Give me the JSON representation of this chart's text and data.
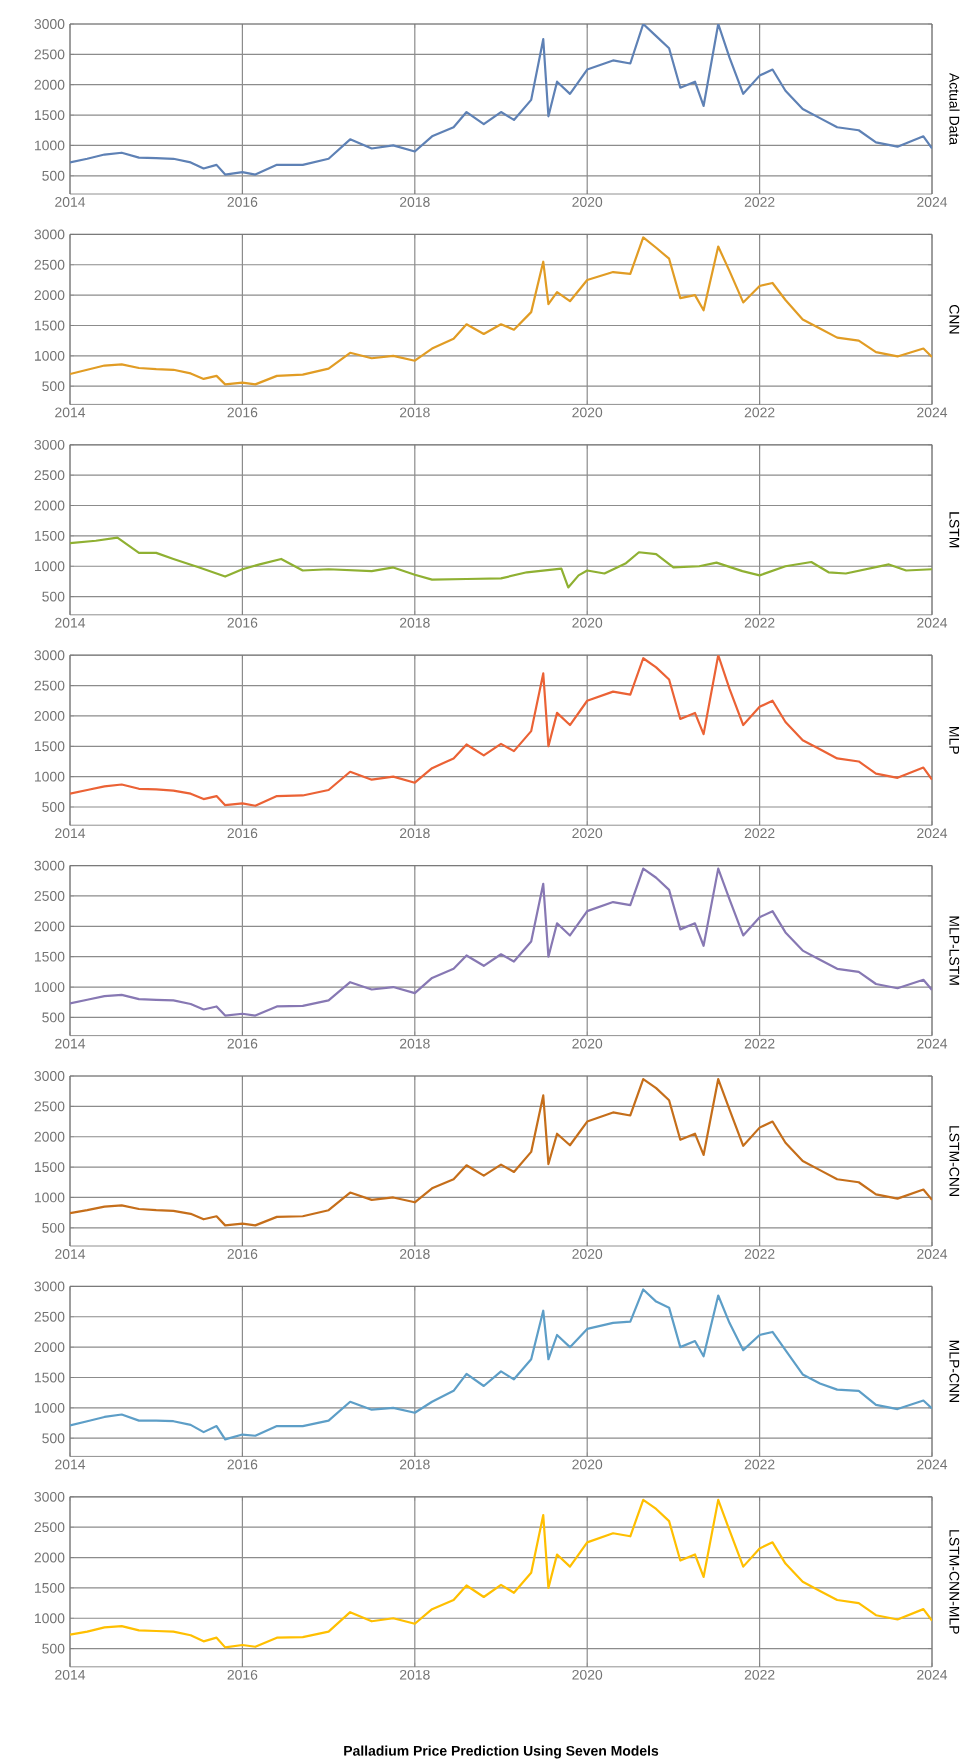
{
  "chart_data": [
    {
      "type": "line",
      "ylabel": "Actual Data",
      "xlim": [
        2014,
        2024
      ],
      "ylim": [
        200,
        3000
      ],
      "xticks": [
        2014,
        2016,
        2018,
        2020,
        2022,
        2024
      ],
      "yticks": [
        500,
        1000,
        1500,
        2000,
        2500,
        3000
      ],
      "grid": true,
      "x": [
        2014.0,
        2014.2,
        2014.4,
        2014.6,
        2014.8,
        2015.0,
        2015.2,
        2015.4,
        2015.55,
        2015.7,
        2015.8,
        2016.0,
        2016.15,
        2016.4,
        2016.7,
        2017.0,
        2017.25,
        2017.5,
        2017.75,
        2018.0,
        2018.2,
        2018.45,
        2018.6,
        2018.8,
        2019.0,
        2019.15,
        2019.35,
        2019.49,
        2019.55,
        2019.65,
        2019.8,
        2020.0,
        2020.3,
        2020.5,
        2020.65,
        2020.8,
        2020.95,
        2021.08,
        2021.25,
        2021.35,
        2021.52,
        2021.65,
        2021.81,
        2022.0,
        2022.15,
        2022.3,
        2022.5,
        2022.7,
        2022.9,
        2023.15,
        2023.35,
        2023.6,
        2023.9,
        2024.0
      ],
      "series": [
        {
          "color": "#5e81b5",
          "values": [
            720,
            780,
            850,
            880,
            800,
            790,
            780,
            720,
            620,
            680,
            520,
            560,
            520,
            680,
            680,
            780,
            1100,
            950,
            1000,
            900,
            1150,
            1300,
            1550,
            1350,
            1550,
            1420,
            1750,
            2750,
            1480,
            2050,
            1850,
            2250,
            2400,
            2350,
            3000,
            2800,
            2600,
            1950,
            2050,
            1650,
            3000,
            2450,
            1850,
            2150,
            2250,
            1900,
            1600,
            1450,
            1300,
            1250,
            1050,
            980,
            1150,
            950
          ]
        }
      ]
    },
    {
      "type": "line",
      "ylabel": "CNN",
      "xlim": [
        2014,
        2024
      ],
      "ylim": [
        200,
        3000
      ],
      "xticks": [
        2014,
        2016,
        2018,
        2020,
        2022,
        2024
      ],
      "yticks": [
        500,
        1000,
        1500,
        2000,
        2500,
        3000
      ],
      "grid": true,
      "x": [
        2014.0,
        2014.2,
        2014.4,
        2014.6,
        2014.8,
        2015.0,
        2015.2,
        2015.4,
        2015.55,
        2015.7,
        2015.8,
        2016.0,
        2016.15,
        2016.4,
        2016.7,
        2017.0,
        2017.25,
        2017.5,
        2017.75,
        2018.0,
        2018.2,
        2018.45,
        2018.6,
        2018.8,
        2019.0,
        2019.15,
        2019.35,
        2019.49,
        2019.55,
        2019.65,
        2019.8,
        2020.0,
        2020.3,
        2020.5,
        2020.65,
        2020.8,
        2020.95,
        2021.08,
        2021.25,
        2021.35,
        2021.52,
        2021.65,
        2021.81,
        2022.0,
        2022.15,
        2022.3,
        2022.5,
        2022.7,
        2022.9,
        2023.15,
        2023.35,
        2023.6,
        2023.9,
        2024.0
      ],
      "series": [
        {
          "color": "#e19c24",
          "values": [
            700,
            770,
            840,
            860,
            800,
            780,
            770,
            710,
            620,
            670,
            530,
            560,
            530,
            670,
            690,
            790,
            1050,
            960,
            1000,
            920,
            1120,
            1280,
            1520,
            1360,
            1520,
            1430,
            1720,
            2550,
            1850,
            2050,
            1900,
            2250,
            2380,
            2350,
            2950,
            2780,
            2600,
            1950,
            2000,
            1750,
            2800,
            2400,
            1880,
            2150,
            2200,
            1920,
            1600,
            1450,
            1300,
            1250,
            1060,
            990,
            1120,
            980
          ]
        }
      ]
    },
    {
      "type": "line",
      "ylabel": "LSTM",
      "xlim": [
        2014,
        2024
      ],
      "ylim": [
        200,
        3000
      ],
      "xticks": [
        2014,
        2016,
        2018,
        2020,
        2022,
        2024
      ],
      "yticks": [
        500,
        1000,
        1500,
        2000,
        2500,
        3000
      ],
      "grid": true,
      "x": [
        2014,
        2014.3,
        2014.55,
        2014.8,
        2015.0,
        2015.2,
        2015.5,
        2015.8,
        2016,
        2016.2,
        2016.45,
        2016.7,
        2017.0,
        2017.5,
        2017.75,
        2018,
        2018.2,
        2018.6,
        2019,
        2019.3,
        2019.7,
        2019.78,
        2019.9,
        2020,
        2020.2,
        2020.45,
        2020.6,
        2020.8,
        2021,
        2021.3,
        2021.5,
        2021.8,
        2022,
        2022.3,
        2022.6,
        2022.8,
        2023,
        2023.5,
        2023.7,
        2024
      ],
      "series": [
        {
          "color": "#8fb032",
          "values": [
            1380,
            1420,
            1470,
            1220,
            1220,
            1120,
            980,
            830,
            950,
            1030,
            1120,
            930,
            950,
            920,
            980,
            860,
            780,
            790,
            800,
            900,
            960,
            650,
            850,
            930,
            880,
            1050,
            1230,
            1200,
            980,
            1000,
            1060,
            920,
            850,
            1000,
            1070,
            900,
            880,
            1030,
            930,
            950
          ]
        }
      ]
    },
    {
      "type": "line",
      "ylabel": "MLP",
      "xlim": [
        2014,
        2024
      ],
      "ylim": [
        200,
        3000
      ],
      "xticks": [
        2014,
        2016,
        2018,
        2020,
        2022,
        2024
      ],
      "yticks": [
        500,
        1000,
        1500,
        2000,
        2500,
        3000
      ],
      "grid": true,
      "x": [
        2014.0,
        2014.2,
        2014.4,
        2014.6,
        2014.8,
        2015.0,
        2015.2,
        2015.4,
        2015.55,
        2015.7,
        2015.8,
        2016.0,
        2016.15,
        2016.4,
        2016.7,
        2017.0,
        2017.25,
        2017.5,
        2017.75,
        2018.0,
        2018.2,
        2018.45,
        2018.6,
        2018.8,
        2019.0,
        2019.15,
        2019.35,
        2019.49,
        2019.55,
        2019.65,
        2019.8,
        2020.0,
        2020.3,
        2020.5,
        2020.65,
        2020.8,
        2020.95,
        2021.08,
        2021.25,
        2021.35,
        2021.52,
        2021.65,
        2021.81,
        2022.0,
        2022.15,
        2022.3,
        2022.5,
        2022.7,
        2022.9,
        2023.15,
        2023.35,
        2023.6,
        2023.9,
        2024.0
      ],
      "series": [
        {
          "color": "#eb6235",
          "values": [
            720,
            780,
            840,
            870,
            800,
            790,
            770,
            720,
            630,
            680,
            530,
            560,
            520,
            680,
            690,
            780,
            1080,
            950,
            1000,
            900,
            1140,
            1300,
            1530,
            1350,
            1540,
            1420,
            1750,
            2700,
            1500,
            2050,
            1850,
            2250,
            2400,
            2350,
            2950,
            2800,
            2600,
            1950,
            2050,
            1700,
            3000,
            2450,
            1850,
            2150,
            2250,
            1900,
            1600,
            1450,
            1300,
            1250,
            1050,
            980,
            1150,
            950
          ]
        }
      ]
    },
    {
      "type": "line",
      "ylabel": "MLP-LSTM",
      "xlim": [
        2014,
        2024
      ],
      "ylim": [
        200,
        3000
      ],
      "xticks": [
        2014,
        2016,
        2018,
        2020,
        2022,
        2024
      ],
      "yticks": [
        500,
        1000,
        1500,
        2000,
        2500,
        3000
      ],
      "grid": true,
      "x": [
        2014.0,
        2014.2,
        2014.4,
        2014.6,
        2014.8,
        2015.0,
        2015.2,
        2015.4,
        2015.55,
        2015.7,
        2015.8,
        2016.0,
        2016.15,
        2016.4,
        2016.7,
        2017.0,
        2017.25,
        2017.5,
        2017.75,
        2018.0,
        2018.2,
        2018.45,
        2018.6,
        2018.8,
        2019.0,
        2019.15,
        2019.35,
        2019.49,
        2019.55,
        2019.65,
        2019.8,
        2020.0,
        2020.3,
        2020.5,
        2020.65,
        2020.8,
        2020.95,
        2021.08,
        2021.25,
        2021.35,
        2021.52,
        2021.65,
        2021.81,
        2022.0,
        2022.15,
        2022.3,
        2022.5,
        2022.7,
        2022.9,
        2023.15,
        2023.35,
        2023.6,
        2023.9,
        2024.0
      ],
      "series": [
        {
          "color": "#8778b3",
          "values": [
            730,
            790,
            850,
            870,
            800,
            790,
            780,
            720,
            630,
            680,
            530,
            560,
            530,
            680,
            690,
            780,
            1080,
            960,
            1000,
            900,
            1150,
            1300,
            1520,
            1350,
            1540,
            1420,
            1750,
            2700,
            1500,
            2050,
            1850,
            2250,
            2400,
            2350,
            2950,
            2800,
            2600,
            1950,
            2050,
            1680,
            2950,
            2450,
            1850,
            2150,
            2250,
            1900,
            1600,
            1450,
            1300,
            1250,
            1050,
            980,
            1120,
            950
          ]
        }
      ]
    },
    {
      "type": "line",
      "ylabel": "LSTM-CNN",
      "xlim": [
        2014,
        2024
      ],
      "ylim": [
        200,
        3000
      ],
      "xticks": [
        2014,
        2016,
        2018,
        2020,
        2022,
        2024
      ],
      "yticks": [
        500,
        1000,
        1500,
        2000,
        2500,
        3000
      ],
      "grid": true,
      "x": [
        2014.0,
        2014.2,
        2014.4,
        2014.6,
        2014.8,
        2015.0,
        2015.2,
        2015.4,
        2015.55,
        2015.7,
        2015.8,
        2016.0,
        2016.15,
        2016.4,
        2016.7,
        2017.0,
        2017.25,
        2017.5,
        2017.75,
        2018.0,
        2018.2,
        2018.45,
        2018.6,
        2018.8,
        2019.0,
        2019.15,
        2019.35,
        2019.49,
        2019.55,
        2019.65,
        2019.8,
        2020.0,
        2020.3,
        2020.5,
        2020.65,
        2020.8,
        2020.95,
        2021.08,
        2021.25,
        2021.35,
        2021.52,
        2021.65,
        2021.81,
        2022.0,
        2022.15,
        2022.3,
        2022.5,
        2022.7,
        2022.9,
        2023.15,
        2023.35,
        2023.6,
        2023.9,
        2024.0
      ],
      "series": [
        {
          "color": "#c56e1a",
          "values": [
            740,
            790,
            850,
            870,
            810,
            790,
            780,
            730,
            640,
            690,
            540,
            570,
            540,
            680,
            690,
            790,
            1080,
            960,
            1000,
            920,
            1150,
            1300,
            1530,
            1360,
            1540,
            1420,
            1750,
            2680,
            1550,
            2050,
            1860,
            2250,
            2400,
            2350,
            2950,
            2800,
            2600,
            1950,
            2050,
            1700,
            2950,
            2450,
            1850,
            2150,
            2250,
            1900,
            1600,
            1450,
            1300,
            1250,
            1050,
            980,
            1130,
            960
          ]
        }
      ]
    },
    {
      "type": "line",
      "ylabel": "MLP-CNN",
      "xlim": [
        2014,
        2024
      ],
      "ylim": [
        200,
        3000
      ],
      "xticks": [
        2014,
        2016,
        2018,
        2020,
        2022,
        2024
      ],
      "yticks": [
        500,
        1000,
        1500,
        2000,
        2500,
        3000
      ],
      "grid": true,
      "x": [
        2014.0,
        2014.2,
        2014.4,
        2014.6,
        2014.8,
        2015.0,
        2015.2,
        2015.4,
        2015.55,
        2015.7,
        2015.8,
        2016.0,
        2016.15,
        2016.4,
        2016.7,
        2017.0,
        2017.25,
        2017.5,
        2017.75,
        2018.0,
        2018.2,
        2018.45,
        2018.6,
        2018.8,
        2019.0,
        2019.15,
        2019.35,
        2019.49,
        2019.55,
        2019.65,
        2019.8,
        2020.0,
        2020.3,
        2020.5,
        2020.65,
        2020.8,
        2020.95,
        2021.08,
        2021.25,
        2021.35,
        2021.52,
        2021.65,
        2021.81,
        2022.0,
        2022.15,
        2022.3,
        2022.5,
        2022.7,
        2022.9,
        2023.15,
        2023.35,
        2023.6,
        2023.9,
        2024.0
      ],
      "series": [
        {
          "color": "#5d9ec7",
          "values": [
            710,
            780,
            850,
            890,
            790,
            790,
            780,
            720,
            600,
            700,
            480,
            560,
            540,
            700,
            700,
            790,
            1100,
            970,
            1000,
            920,
            1100,
            1280,
            1560,
            1360,
            1600,
            1470,
            1800,
            2600,
            1800,
            2200,
            2000,
            2300,
            2400,
            2420,
            2950,
            2750,
            2650,
            2000,
            2100,
            1850,
            2850,
            2400,
            1950,
            2200,
            2250,
            1950,
            1550,
            1400,
            1300,
            1280,
            1050,
            980,
            1120,
            990
          ]
        }
      ]
    },
    {
      "type": "line",
      "ylabel": "LSTM-CNN-MLP",
      "title": "Palladium Price Prediction Using Seven Models",
      "xlim": [
        2014,
        2024
      ],
      "ylim": [
        200,
        3000
      ],
      "xticks": [
        2014,
        2016,
        2018,
        2020,
        2022,
        2024
      ],
      "yticks": [
        500,
        1000,
        1500,
        2000,
        2500,
        3000
      ],
      "grid": true,
      "x": [
        2014.0,
        2014.2,
        2014.4,
        2014.6,
        2014.8,
        2015.0,
        2015.2,
        2015.4,
        2015.55,
        2015.7,
        2015.8,
        2016.0,
        2016.15,
        2016.4,
        2016.7,
        2017.0,
        2017.25,
        2017.5,
        2017.75,
        2018.0,
        2018.2,
        2018.45,
        2018.6,
        2018.8,
        2019.0,
        2019.15,
        2019.35,
        2019.49,
        2019.55,
        2019.65,
        2019.8,
        2020.0,
        2020.3,
        2020.5,
        2020.65,
        2020.8,
        2020.95,
        2021.08,
        2021.25,
        2021.35,
        2021.52,
        2021.65,
        2021.81,
        2022.0,
        2022.15,
        2022.3,
        2022.5,
        2022.7,
        2022.9,
        2023.15,
        2023.35,
        2023.6,
        2023.9,
        2024.0
      ],
      "series": [
        {
          "color": "#ffbf00",
          "values": [
            730,
            780,
            850,
            870,
            800,
            790,
            780,
            720,
            620,
            680,
            520,
            560,
            530,
            680,
            690,
            780,
            1100,
            950,
            1000,
            910,
            1150,
            1300,
            1540,
            1350,
            1550,
            1420,
            1750,
            2700,
            1500,
            2050,
            1850,
            2250,
            2400,
            2350,
            2950,
            2800,
            2600,
            1950,
            2050,
            1680,
            2950,
            2450,
            1850,
            2150,
            2250,
            1900,
            1600,
            1450,
            1300,
            1250,
            1050,
            980,
            1150,
            960
          ]
        }
      ]
    }
  ]
}
